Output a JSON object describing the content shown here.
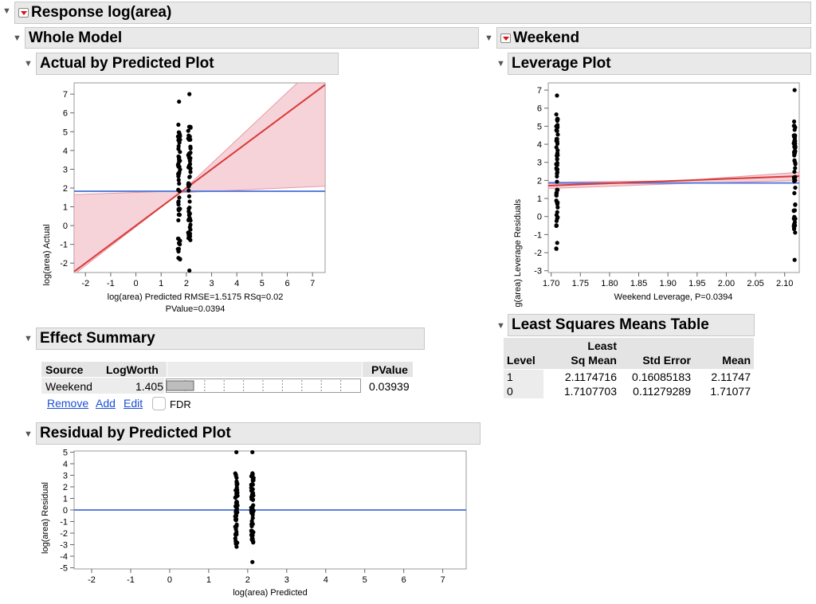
{
  "response_title": "Response log(area)",
  "whole_model": {
    "title": "Whole Model",
    "actual_by_predicted": {
      "title": "Actual by Predicted Plot",
      "ylabel": "log(area) Actual",
      "xlabel_line1": "log(area) Predicted RMSE=1.5175 RSq=0.02",
      "xlabel_line2": "PValue=0.0394",
      "x_ticks": [
        "-2",
        "-1",
        "0",
        "1",
        "2",
        "3",
        "4",
        "5",
        "6",
        "7"
      ],
      "y_ticks": [
        "7",
        "6",
        "5",
        "4",
        "3",
        "2",
        "1",
        "0",
        "-1",
        "-2"
      ]
    },
    "effect_summary": {
      "title": "Effect Summary",
      "headers": {
        "source": "Source",
        "logworth": "LogWorth",
        "pvalue": "PValue"
      },
      "row": {
        "source": "Weekend",
        "logworth": "1.405",
        "pvalue": "0.03939",
        "logworth_bar_fraction": 0.14
      },
      "links": {
        "remove": "Remove",
        "add": "Add",
        "edit": "Edit"
      },
      "fdr_label": "FDR"
    },
    "residual_by_predicted": {
      "title": "Residual by Predicted Plot",
      "ylabel": "log(area) Residual",
      "xlabel": "log(area) Predicted",
      "x_ticks": [
        "-2",
        "-1",
        "0",
        "1",
        "2",
        "3",
        "4",
        "5",
        "6",
        "7"
      ],
      "y_ticks": [
        "5",
        "4",
        "3",
        "2",
        "1",
        "0",
        "-1",
        "-2",
        "-3",
        "-4",
        "-5"
      ]
    }
  },
  "weekend": {
    "title": "Weekend",
    "leverage_plot": {
      "title": "Leverage Plot",
      "ylabel": "log(area) Leverage Residuals",
      "xlabel": "Weekend Leverage, P=0.0394",
      "x_ticks": [
        "1.70",
        "1.75",
        "1.80",
        "1.85",
        "1.90",
        "1.95",
        "2.00",
        "2.05",
        "2.10"
      ],
      "y_ticks": [
        "7",
        "6",
        "5",
        "4",
        "3",
        "2",
        "1",
        "0",
        "-1",
        "-2",
        "-3"
      ]
    },
    "ls_means": {
      "title": "Least Squares Means Table",
      "headers": {
        "level": "Level",
        "lsmean_1": "Least",
        "lsmean_2": "Sq Mean",
        "stderr": "Std Error",
        "mean": "Mean"
      },
      "rows": [
        {
          "level": "1",
          "lsmean": "2.1174716",
          "stderr": "0.16085183",
          "mean": "2.11747"
        },
        {
          "level": "0",
          "lsmean": "1.7107703",
          "stderr": "0.11279289",
          "mean": "1.71077"
        }
      ]
    }
  },
  "colors": {
    "fit_line": "#d93a3a",
    "mean_line": "#5b7fe0",
    "conf_band": "#f6d3d8",
    "header_bg": "#e9e9e9"
  }
}
